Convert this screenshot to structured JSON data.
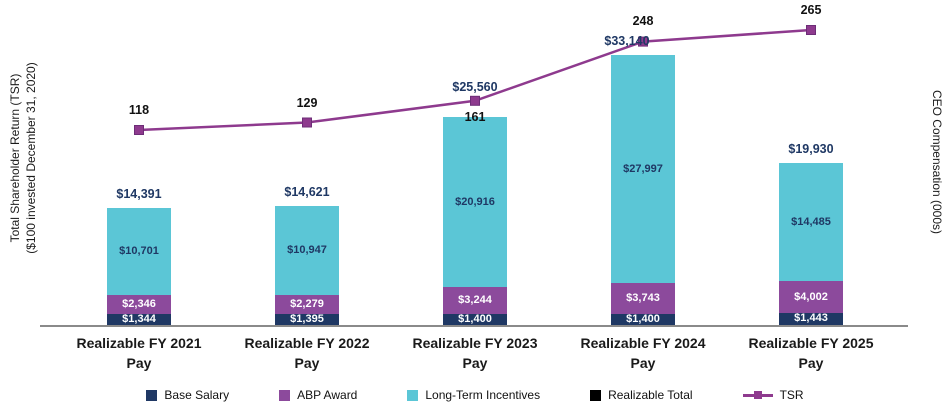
{
  "chart_data": {
    "type": "bar",
    "subtype": "stacked-bar-with-line",
    "title": "",
    "categories": [
      {
        "line1": "Realizable FY 2021",
        "line2": "Pay"
      },
      {
        "line1": "Realizable FY 2022",
        "line2": "Pay"
      },
      {
        "line1": "Realizable FY 2023",
        "line2": "Pay"
      },
      {
        "line1": "Realizable FY 2024",
        "line2": "Pay"
      },
      {
        "line1": "Realizable FY 2025",
        "line2": "Pay"
      }
    ],
    "bar_series": [
      {
        "name": "Base Salary",
        "color": "#1F3864",
        "text_color": "#FFFFFF",
        "values": [
          1344,
          1395,
          1400,
          1400,
          1443
        ],
        "labels": [
          "$1,344",
          "$1,395",
          "$1,400",
          "$1,400",
          "$1,443"
        ]
      },
      {
        "name": "ABP Award",
        "color": "#8C4A9C",
        "text_color": "#FFFFFF",
        "values": [
          2346,
          2279,
          3244,
          3743,
          4002
        ],
        "labels": [
          "$2,346",
          "$2,279",
          "$3,244",
          "$3,743",
          "$4,002"
        ]
      },
      {
        "name": "Long-Term Incentives",
        "color": "#5BC6D6",
        "text_color": "#1F3864",
        "values": [
          10701,
          10947,
          20916,
          27997,
          14485
        ],
        "labels": [
          "$10,701",
          "$10,947",
          "$20,916",
          "$27,997",
          "$14,485"
        ]
      }
    ],
    "totals": {
      "name": "Realizable Total",
      "text_color": "#1F3864",
      "values": [
        14391,
        14621,
        25560,
        33140,
        19930
      ],
      "labels": [
        "$14,391",
        "$14,621",
        "$25,560",
        "$33,140",
        "$19,930"
      ]
    },
    "line_series": {
      "name": "TSR",
      "color": "#8E3A8E",
      "marker_stroke": "#6D2D77",
      "values": [
        118,
        129,
        161,
        248,
        265
      ],
      "labels": [
        "118",
        "129",
        "161",
        "248",
        "265"
      ],
      "label_color": "#111111"
    },
    "left_axis_label": {
      "line1": "Total Shareholder Return (TSR)",
      "line2": "($100 invested December 31, 2020)"
    },
    "right_axis_label": "CEO Compensation (000s)",
    "legend": [
      {
        "label": "Base Salary",
        "swatch": "square",
        "color": "#1F3864"
      },
      {
        "label": "ABP Award",
        "swatch": "square",
        "color": "#8C4A9C"
      },
      {
        "label": "Long-Term Incentives",
        "swatch": "square",
        "color": "#5BC6D6"
      },
      {
        "label": "Realizable Total",
        "swatch": "square",
        "color": "#000000"
      },
      {
        "label": "TSR",
        "swatch": "line-square",
        "color": "#8E3A8E"
      }
    ],
    "axes": {
      "comp_axis_max": 33140,
      "tsr_range_shown": [
        118,
        265
      ],
      "grid": false,
      "legend_position": "bottom",
      "tsr_label_positions": [
        "above",
        "above",
        "below",
        "above",
        "above"
      ]
    }
  }
}
